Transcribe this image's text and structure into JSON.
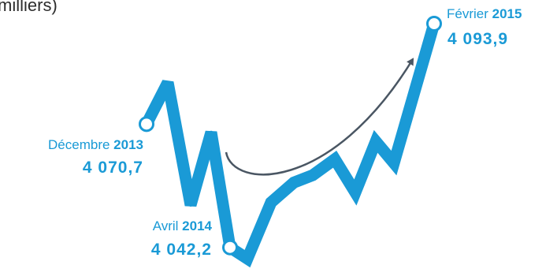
{
  "chart_data": {
    "type": "line",
    "y_axis_title_fragment": "milliers)",
    "accent_color": "#1a9ad6",
    "trend_arrow_color": "#4a5663",
    "series": [
      {
        "values": [
          4070.7,
          4080.3,
          4052.0,
          4068.8,
          4042.2,
          4039.6,
          4052.6,
          4057.2,
          4058.9,
          4062.6,
          4054.9,
          4066.7,
          4061.7,
          4093.9
        ]
      }
    ],
    "annotations": [
      {
        "point_index": 0,
        "month": "Décembre",
        "year": "2013",
        "value_label": "4 070,7",
        "value": 4070.7
      },
      {
        "point_index": 4,
        "month": "Avril",
        "year": "2014",
        "value_label": "4 042,2",
        "value": 4042.2
      },
      {
        "point_index": 13,
        "month": "Février",
        "year": "2015",
        "value_label": "4 093,9",
        "value": 4093.9
      }
    ]
  }
}
